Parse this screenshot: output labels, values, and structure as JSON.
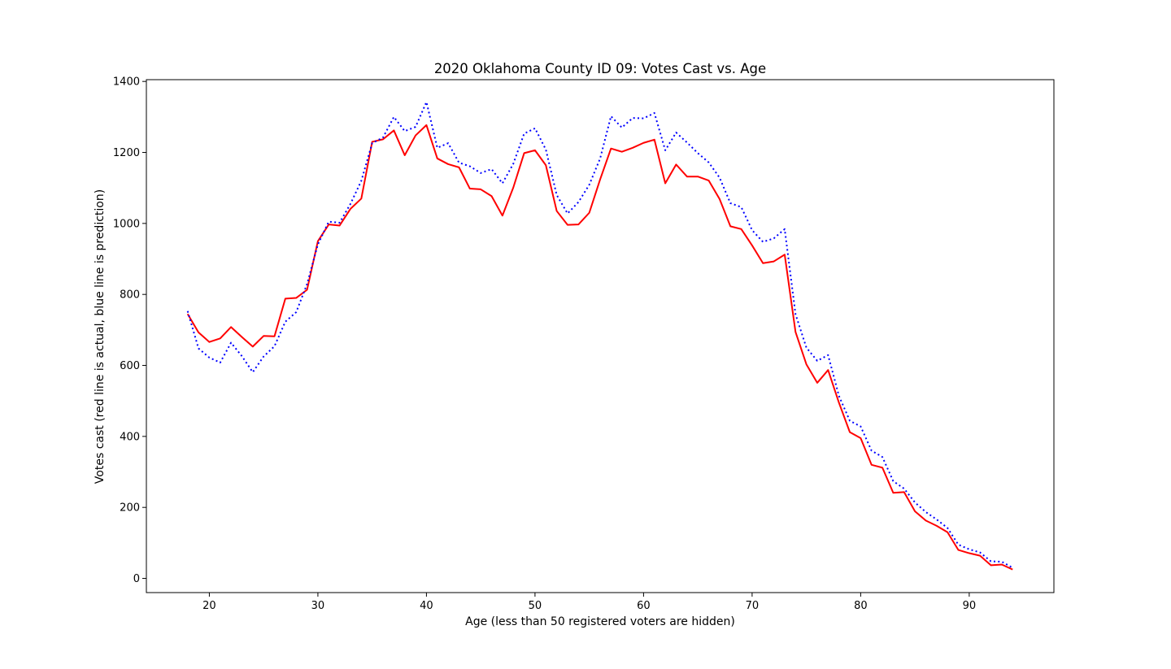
{
  "chart_data": {
    "type": "line",
    "title": "2020 Oklahoma County ID 09: Votes Cast vs. Age",
    "xlabel": "Age (less than 50 registered voters are hidden)",
    "ylabel": "Votes cast (red line is actual, blue line is prediction)",
    "xlim": [
      14.2,
      97.8
    ],
    "ylim": [
      -40,
      1405
    ],
    "xticks": [
      20,
      30,
      40,
      50,
      60,
      70,
      80,
      90
    ],
    "yticks": [
      0,
      200,
      400,
      600,
      800,
      1000,
      1200,
      1400
    ],
    "grid": false,
    "x": [
      18,
      19,
      20,
      21,
      22,
      23,
      24,
      25,
      26,
      27,
      28,
      29,
      30,
      31,
      32,
      33,
      34,
      35,
      36,
      37,
      38,
      39,
      40,
      41,
      42,
      43,
      44,
      45,
      46,
      47,
      48,
      49,
      50,
      51,
      52,
      53,
      54,
      55,
      56,
      57,
      58,
      59,
      60,
      61,
      62,
      63,
      64,
      65,
      66,
      67,
      68,
      69,
      70,
      71,
      72,
      73,
      74,
      75,
      76,
      77,
      78,
      79,
      80,
      81,
      82,
      83,
      84,
      85,
      86,
      87,
      88,
      89,
      90,
      91,
      92,
      93,
      94
    ],
    "series": [
      {
        "style": "solid",
        "color": "#ff0000",
        "values": [
          745,
          693,
          666,
          676,
          708,
          680,
          653,
          683,
          682,
          788,
          790,
          813,
          950,
          997,
          994,
          1041,
          1070,
          1230,
          1237,
          1262,
          1192,
          1248,
          1277,
          1183,
          1167,
          1158,
          1098,
          1096,
          1077,
          1022,
          1101,
          1198,
          1206,
          1164,
          1035,
          996,
          997,
          1030,
          1124,
          1211,
          1202,
          1213,
          1227,
          1236,
          1113,
          1166,
          1132,
          1132,
          1121,
          1069,
          992,
          984,
          938,
          888,
          893,
          912,
          694,
          603,
          551,
          587,
          495,
          412,
          395,
          320,
          312,
          241,
          243,
          189,
          163,
          148,
          130,
          80,
          71,
          64,
          37,
          39,
          25
        ]
      },
      {
        "style": "dotted",
        "color": "#0000ff",
        "values": [
          753,
          648,
          622,
          608,
          664,
          626,
          581,
          625,
          654,
          723,
          750,
          829,
          941,
          1005,
          1002,
          1055,
          1120,
          1226,
          1242,
          1300,
          1260,
          1272,
          1342,
          1213,
          1226,
          1171,
          1161,
          1142,
          1153,
          1113,
          1168,
          1253,
          1268,
          1208,
          1080,
          1028,
          1060,
          1109,
          1183,
          1302,
          1270,
          1297,
          1296,
          1311,
          1206,
          1256,
          1228,
          1198,
          1172,
          1129,
          1057,
          1046,
          981,
          948,
          958,
          984,
          744,
          650,
          613,
          629,
          514,
          444,
          428,
          360,
          342,
          274,
          253,
          214,
          187,
          166,
          142,
          95,
          82,
          73,
          48,
          47,
          30
        ]
      }
    ]
  }
}
